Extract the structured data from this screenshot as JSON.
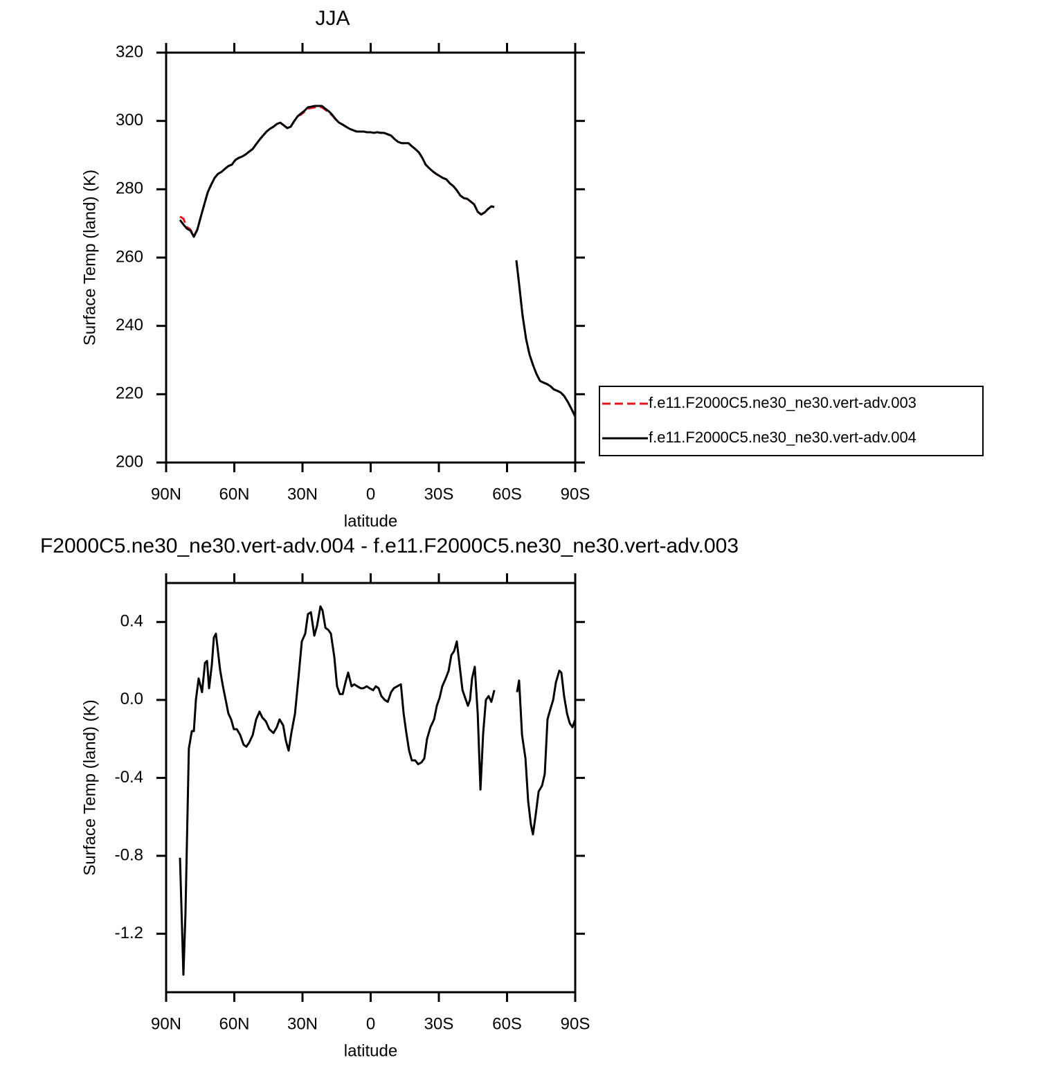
{
  "chart_data": [
    {
      "type": "line",
      "title": "JJA",
      "x_label": "latitude",
      "y_label": "Surface Temp (land) (K)",
      "xlim": [
        90,
        -90
      ],
      "xticks": [
        {
          "value": 90,
          "label": "90N"
        },
        {
          "value": 60,
          "label": "60N"
        },
        {
          "value": 30,
          "label": "30N"
        },
        0,
        {
          "value": -30,
          "label": "30S"
        },
        {
          "value": -60,
          "label": "60S"
        },
        {
          "value": -90,
          "label": "90S"
        }
      ],
      "ylim": [
        200,
        320
      ],
      "yticks": [
        200,
        220,
        240,
        260,
        280,
        300,
        320
      ],
      "legend": "right",
      "x": [
        83.9,
        82.4,
        80.9,
        79.3,
        77.8,
        76.3,
        74.8,
        73.2,
        71.7,
        70.2,
        68.7,
        67.2,
        65.6,
        64.1,
        62.6,
        61.1,
        59.5,
        58.0,
        56.5,
        55.0,
        53.5,
        51.9,
        50.4,
        48.9,
        47.4,
        45.8,
        44.3,
        42.8,
        41.3,
        39.8,
        38.2,
        36.7,
        35.2,
        33.7,
        32.1,
        30.6,
        29.1,
        27.6,
        26.0,
        24.5,
        23.0,
        21.5,
        20.0,
        18.4,
        16.9,
        15.4,
        13.9,
        12.3,
        10.8,
        9.3,
        7.8,
        6.2,
        4.7,
        3.2,
        1.7,
        0.1,
        -1.4,
        -2.9,
        -4.4,
        -5.9,
        -7.5,
        -9.0,
        -10.5,
        -12.0,
        -13.6,
        -15.1,
        -16.6,
        -18.1,
        -19.6,
        -21.2,
        -22.7,
        -24.2,
        -25.7,
        -27.2,
        -28.8,
        -30.3,
        -31.8,
        -33.3,
        -34.9,
        -36.4,
        -37.9,
        -39.4,
        -41.0,
        -42.5,
        -44.0,
        -45.5,
        -47.1,
        -48.6,
        -50.1,
        -51.6,
        -53.1,
        -54.4,
        -59,
        -64.1,
        -65.3,
        -66.8,
        -68.4,
        -69.9,
        -71.4,
        -72.9,
        -74.5,
        -76.0,
        -77.5,
        -79.0,
        -80.6,
        -82.1,
        -83.6,
        -85.1,
        -86.6,
        -88.2,
        -90.0
      ],
      "series": [
        {
          "name": "f.e11.F2000C5.ne30_ne30.vert-adv.003",
          "color": "#e8141b",
          "line_style": "dashed",
          "values": [
            272.0,
            271.4,
            269.0,
            268.2,
            266.3,
            268.2,
            271.8,
            275.6,
            279.1,
            281.3,
            283.3,
            284.5,
            285.1,
            286.0,
            286.8,
            287.2,
            288.6,
            289.2,
            289.6,
            290.2,
            291.0,
            291.8,
            293.2,
            294.5,
            295.7,
            296.9,
            297.7,
            298.3,
            299.1,
            299.5,
            298.7,
            297.9,
            298.3,
            299.9,
            301.4,
            301.9,
            302.7,
            303.6,
            303.8,
            304.0,
            304.0,
            304.0,
            303.3,
            302.5,
            301.6,
            300.5,
            299.5,
            298.9,
            298.3,
            297.7,
            297.3,
            296.9,
            296.9,
            296.9,
            296.7,
            296.7,
            296.5,
            296.7,
            296.5,
            296.5,
            296.1,
            295.7,
            294.7,
            293.9,
            293.5,
            293.5,
            293.5,
            292.6,
            291.8,
            290.8,
            289.2,
            287.2,
            286.2,
            285.3,
            284.5,
            283.9,
            283.3,
            282.9,
            281.7,
            280.9,
            279.7,
            278.2,
            277.4,
            277.2,
            276.4,
            275.6,
            273.4,
            272.6,
            273.2,
            274.2,
            275.0,
            274.8,
            null,
            259.2,
            252.3,
            243.2,
            236.1,
            231.6,
            228.6,
            226.0,
            223.9,
            223.4,
            223.0,
            222.4,
            221.4,
            221.0,
            220.5,
            219.5,
            217.9,
            215.9,
            213.4
          ]
        },
        {
          "name": "f.e11.F2000C5.ne30_ne30.vert-adv.004",
          "color": "#000000",
          "line_style": "solid",
          "values": [
            271.0,
            269.7,
            268.5,
            267.9,
            266.1,
            268.1,
            271.8,
            275.6,
            279.1,
            281.3,
            283.3,
            284.5,
            285.1,
            286.0,
            286.8,
            287.2,
            288.6,
            289.2,
            289.6,
            290.2,
            291.0,
            291.8,
            293.2,
            294.5,
            295.7,
            296.9,
            297.7,
            298.3,
            299.1,
            299.5,
            298.7,
            297.9,
            298.3,
            299.9,
            301.4,
            302.2,
            303.0,
            304.0,
            304.2,
            304.4,
            304.4,
            304.4,
            303.6,
            302.8,
            301.8,
            300.5,
            299.5,
            298.9,
            298.3,
            297.7,
            297.3,
            296.9,
            296.9,
            296.9,
            296.7,
            296.7,
            296.5,
            296.7,
            296.5,
            296.5,
            296.1,
            295.7,
            294.7,
            293.9,
            293.5,
            293.5,
            293.5,
            292.6,
            291.8,
            290.8,
            289.2,
            287.2,
            286.2,
            285.3,
            284.5,
            283.9,
            283.3,
            282.9,
            281.7,
            280.9,
            279.7,
            278.2,
            277.4,
            277.2,
            276.4,
            275.6,
            273.4,
            272.6,
            273.2,
            274.2,
            275.0,
            274.8,
            null,
            259.2,
            252.3,
            243.2,
            236.1,
            231.6,
            228.6,
            226.0,
            223.9,
            223.4,
            223.0,
            222.4,
            221.4,
            221.0,
            220.5,
            219.5,
            217.9,
            215.9,
            213.4
          ]
        }
      ]
    },
    {
      "type": "line",
      "title": "F2000C5.ne30_ne30.vert-adv.004 - f.e11.F2000C5.ne30_ne30.vert-adv.003",
      "x_label": "latitude",
      "y_label": "Surface Temp (land) (K)",
      "xlim": [
        90,
        -90
      ],
      "xticks": [
        {
          "value": 90,
          "label": "90N"
        },
        {
          "value": 60,
          "label": "60N"
        },
        {
          "value": 30,
          "label": "30N"
        },
        0,
        {
          "value": -30,
          "label": "30S"
        },
        {
          "value": -60,
          "label": "60S"
        },
        {
          "value": -90,
          "label": "90S"
        }
      ],
      "ylim": [
        -1.5,
        0.6
      ],
      "yticks": [
        -1.2,
        -0.8,
        -0.4,
        {
          "value": 0,
          "label": "0.0"
        },
        0.4
      ],
      "x": [
        83.9,
        82.4,
        81.5,
        80.0,
        78.7,
        77.8,
        76.9,
        75.7,
        74.2,
        72.9,
        72.0,
        71.1,
        69.9,
        69.0,
        68.1,
        67.2,
        66.2,
        65.0,
        63.8,
        62.6,
        61.4,
        60.2,
        58.9,
        57.4,
        55.9,
        54.7,
        53.5,
        51.9,
        50.4,
        48.9,
        47.7,
        46.1,
        44.6,
        42.8,
        41.3,
        40.1,
        38.5,
        37.3,
        36.1,
        34.9,
        33.3,
        31.8,
        30.3,
        28.8,
        27.6,
        26.3,
        24.8,
        23.6,
        22.1,
        21.2,
        19.9,
        18.7,
        17.5,
        16.0,
        14.8,
        13.6,
        12.3,
        11.1,
        9.9,
        8.4,
        7.2,
        5.9,
        4.4,
        3.2,
        1.7,
        0.5,
        -1.1,
        -2.3,
        -3.5,
        -4.7,
        -6.2,
        -7.5,
        -9.0,
        -10.2,
        -11.7,
        -13.3,
        -14.5,
        -15.7,
        -16.9,
        -18.1,
        -19.6,
        -20.9,
        -22.4,
        -23.6,
        -24.8,
        -26.3,
        -27.9,
        -29.1,
        -30.3,
        -31.5,
        -33.0,
        -34.3,
        -35.5,
        -36.7,
        -37.9,
        -39.1,
        -40.4,
        -41.6,
        -42.8,
        -43.7,
        -44.6,
        -45.8,
        -47.1,
        -48.3,
        -49.5,
        -50.7,
        -51.9,
        -53.1,
        -54.4,
        -59,
        -64.4,
        -65.3,
        -66.6,
        -68.1,
        -69.3,
        -70.5,
        -71.4,
        -72.6,
        -73.9,
        -75.4,
        -76.6,
        -77.8,
        -79.0,
        -80.3,
        -81.5,
        -83.0,
        -83.9,
        -85.1,
        -86.4,
        -87.6,
        -88.8,
        -90.0
      ],
      "series": [
        {
          "color": "#000000",
          "line_style": "solid",
          "values": [
            -0.81,
            -1.41,
            -1.1,
            -0.25,
            -0.16,
            -0.16,
            0.0,
            0.11,
            0.04,
            0.19,
            0.2,
            0.06,
            0.18,
            0.32,
            0.34,
            0.25,
            0.15,
            0.07,
            0.0,
            -0.07,
            -0.1,
            -0.15,
            -0.15,
            -0.18,
            -0.23,
            -0.24,
            -0.22,
            -0.18,
            -0.1,
            -0.06,
            -0.09,
            -0.11,
            -0.15,
            -0.17,
            -0.14,
            -0.1,
            -0.13,
            -0.21,
            -0.26,
            -0.17,
            -0.07,
            0.11,
            0.3,
            0.34,
            0.44,
            0.45,
            0.33,
            0.38,
            0.48,
            0.46,
            0.37,
            0.36,
            0.34,
            0.22,
            0.07,
            0.03,
            0.03,
            0.09,
            0.14,
            0.07,
            0.08,
            0.07,
            0.06,
            0.06,
            0.07,
            0.06,
            0.05,
            0.07,
            0.06,
            0.02,
            0.0,
            -0.01,
            0.04,
            0.06,
            0.07,
            0.08,
            -0.07,
            -0.17,
            -0.26,
            -0.31,
            -0.31,
            -0.33,
            -0.32,
            -0.3,
            -0.2,
            -0.14,
            -0.1,
            -0.03,
            0.01,
            0.07,
            0.11,
            0.15,
            0.23,
            0.25,
            0.3,
            0.18,
            0.05,
            0.01,
            -0.03,
            0.0,
            0.11,
            0.17,
            -0.07,
            -0.46,
            -0.17,
            0.0,
            0.02,
            -0.01,
            0.05,
            null,
            0.04,
            0.1,
            -0.18,
            -0.3,
            -0.52,
            -0.64,
            -0.69,
            -0.59,
            -0.47,
            -0.44,
            -0.38,
            -0.1,
            -0.05,
            0.0,
            0.09,
            0.15,
            0.14,
            0.02,
            -0.07,
            -0.12,
            -0.14,
            -0.1
          ]
        }
      ]
    }
  ]
}
